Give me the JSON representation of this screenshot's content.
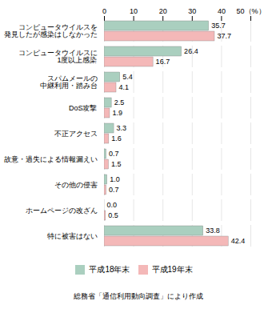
{
  "chart_data": {
    "type": "bar",
    "orientation": "horizontal",
    "categories": [
      "コンピュータウイルスを\n発見したが感染はしなかった",
      "コンピュータウイルスに\n1度以上感染",
      "スパムメールの\n中継利用・踏み台",
      "DoS攻撃",
      "不正アクセス",
      "故意・過失による情報漏えい",
      "その他の侵害",
      "ホームページの改ざん",
      "特に被害はない"
    ],
    "series": [
      {
        "name": "平成18年末",
        "color": "#aacfbf",
        "values": [
          35.7,
          26.4,
          5.4,
          2.5,
          3.3,
          0.7,
          1.0,
          0.0,
          33.8
        ],
        "value_labels": [
          "35.7",
          "26.4",
          "5.4",
          "2.5",
          "3.3",
          "0.7",
          "1.0",
          "0.0",
          "33.8"
        ]
      },
      {
        "name": "平成19年末",
        "color": "#f4b8b8",
        "values": [
          37.7,
          16.7,
          4.1,
          1.9,
          1.6,
          1.5,
          0.7,
          0.5,
          42.4
        ]
      }
    ],
    "xlim": [
      0,
      50
    ],
    "xticks": [
      0,
      10,
      20,
      30,
      40,
      {
        "value": 50,
        "label": "50（%）"
      }
    ],
    "grid": true,
    "data_labels": true,
    "legend": "bottom",
    "annotations": [
      "総務省「通信利用動向調査」により作成"
    ]
  }
}
